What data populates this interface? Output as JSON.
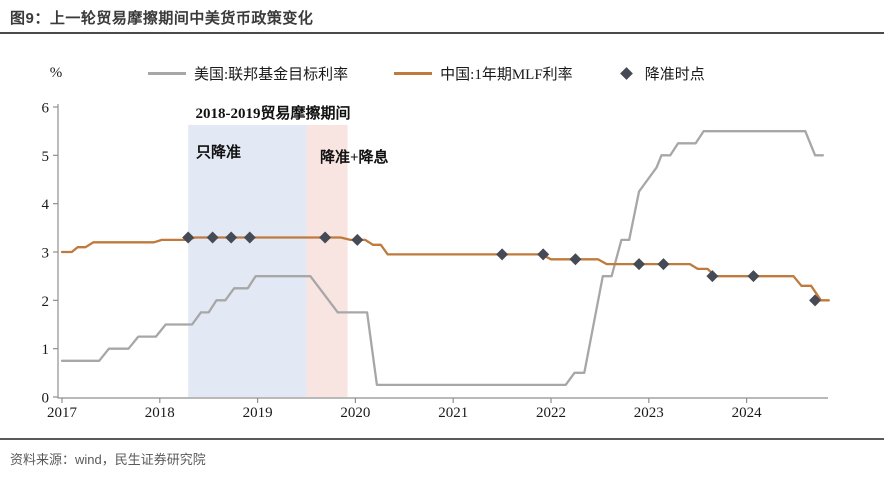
{
  "page": {
    "title": "图9：上一轮贸易摩擦期间中美货币政策变化",
    "source": "资料来源：wind，民生证券研究院"
  },
  "legend": [
    {
      "label": "美国:联邦基金目标利率",
      "type": "line",
      "color": "#a7a7a7"
    },
    {
      "label": "中国:1年期MLF利率",
      "type": "line",
      "color": "#bf7a3d"
    },
    {
      "label": "降准时点",
      "type": "diamond",
      "color": "#454a54"
    }
  ],
  "chart_data": {
    "type": "line",
    "title": "图9：上一轮贸易摩擦期间中美货币政策变化",
    "ylabel": "%",
    "xlabel": "",
    "ylim": [
      0,
      6
    ],
    "xlim": [
      2017,
      2024.85
    ],
    "y_ticks": [
      0,
      1,
      2,
      3,
      4,
      5,
      6
    ],
    "x_ticks": [
      2017,
      2018,
      2019,
      2020,
      2021,
      2022,
      2023,
      2024
    ],
    "grid": false,
    "legend_position": "top",
    "annotation": "2018-2019贸易摩擦期间",
    "regions": [
      {
        "label": "只降准",
        "x0": 2018.29,
        "x1": 2019.5,
        "y_top": 5.63,
        "color": "#e3e9f4"
      },
      {
        "label": "降准+降息",
        "x0": 2019.5,
        "x1": 2019.92,
        "y_top": 5.63,
        "color": "#f8e5e2"
      }
    ],
    "series": [
      {
        "name": "美国:联邦基金目标利率",
        "key": "us-ffr-line",
        "color": "#a7a7a7",
        "points": [
          [
            2017.0,
            0.75
          ],
          [
            2017.38,
            0.75
          ],
          [
            2017.48,
            1.0
          ],
          [
            2017.68,
            1.0
          ],
          [
            2017.78,
            1.25
          ],
          [
            2017.96,
            1.25
          ],
          [
            2018.06,
            1.5
          ],
          [
            2018.33,
            1.5
          ],
          [
            2018.42,
            1.75
          ],
          [
            2018.5,
            1.75
          ],
          [
            2018.58,
            2.0
          ],
          [
            2018.67,
            2.0
          ],
          [
            2018.76,
            2.25
          ],
          [
            2018.9,
            2.25
          ],
          [
            2018.98,
            2.5
          ],
          [
            2019.54,
            2.5
          ],
          [
            2019.82,
            1.75
          ],
          [
            2020.12,
            1.75
          ],
          [
            2020.22,
            0.25
          ],
          [
            2022.15,
            0.25
          ],
          [
            2022.24,
            0.5
          ],
          [
            2022.34,
            0.5
          ],
          [
            2022.53,
            2.5
          ],
          [
            2022.62,
            2.5
          ],
          [
            2022.72,
            3.25
          ],
          [
            2022.8,
            3.25
          ],
          [
            2022.9,
            4.25
          ],
          [
            2022.99,
            4.5
          ],
          [
            2023.08,
            4.75
          ],
          [
            2023.13,
            5.0
          ],
          [
            2023.22,
            5.0
          ],
          [
            2023.3,
            5.25
          ],
          [
            2023.48,
            5.25
          ],
          [
            2023.56,
            5.5
          ],
          [
            2024.6,
            5.5
          ],
          [
            2024.7,
            5.0
          ],
          [
            2024.78,
            5.0
          ]
        ]
      },
      {
        "name": "中国:1年期MLF利率",
        "key": "china-mlf-line",
        "color": "#bf7a3d",
        "points": [
          [
            2017.0,
            3.0
          ],
          [
            2017.1,
            3.0
          ],
          [
            2017.16,
            3.1
          ],
          [
            2017.24,
            3.1
          ],
          [
            2017.32,
            3.2
          ],
          [
            2017.94,
            3.2
          ],
          [
            2018.02,
            3.25
          ],
          [
            2018.28,
            3.25
          ],
          [
            2018.36,
            3.3
          ],
          [
            2019.85,
            3.3
          ],
          [
            2019.95,
            3.25
          ],
          [
            2020.1,
            3.25
          ],
          [
            2020.18,
            3.15
          ],
          [
            2020.26,
            3.15
          ],
          [
            2020.33,
            2.95
          ],
          [
            2021.9,
            2.95
          ],
          [
            2022.0,
            2.85
          ],
          [
            2022.48,
            2.85
          ],
          [
            2022.57,
            2.75
          ],
          [
            2023.42,
            2.75
          ],
          [
            2023.5,
            2.65
          ],
          [
            2023.6,
            2.65
          ],
          [
            2023.68,
            2.5
          ],
          [
            2024.48,
            2.5
          ],
          [
            2024.56,
            2.3
          ],
          [
            2024.66,
            2.3
          ],
          [
            2024.76,
            2.0
          ],
          [
            2024.84,
            2.0
          ]
        ]
      }
    ],
    "markers": {
      "name": "降准时点",
      "key": "rrr-cut-markers",
      "color": "#454a54",
      "points": [
        [
          2018.29,
          3.3
        ],
        [
          2018.54,
          3.3
        ],
        [
          2018.73,
          3.3
        ],
        [
          2018.92,
          3.3
        ],
        [
          2019.69,
          3.3
        ],
        [
          2020.02,
          3.25
        ],
        [
          2021.5,
          2.95
        ],
        [
          2021.92,
          2.95
        ],
        [
          2022.25,
          2.85
        ],
        [
          2022.9,
          2.75
        ],
        [
          2023.15,
          2.75
        ],
        [
          2023.65,
          2.5
        ],
        [
          2024.07,
          2.5
        ],
        [
          2024.7,
          2.0
        ]
      ]
    }
  }
}
